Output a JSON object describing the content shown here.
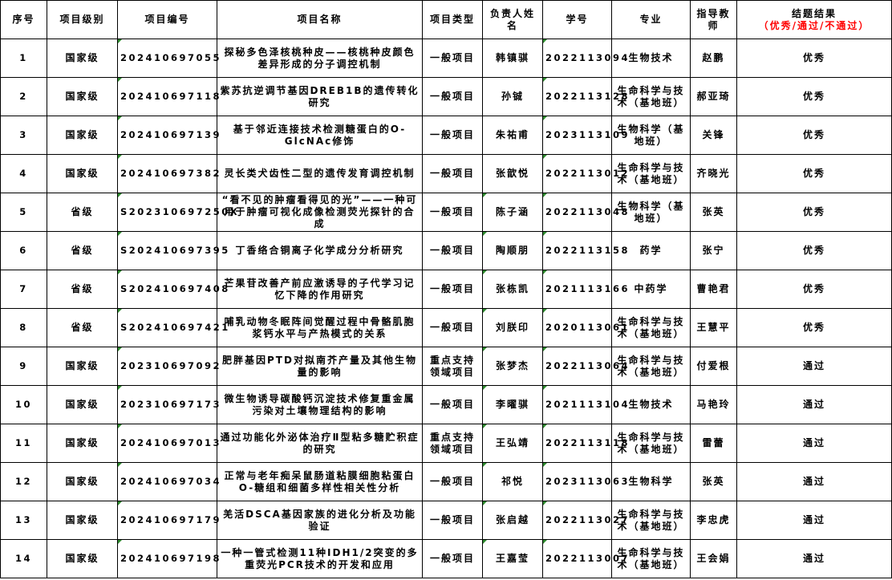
{
  "header": {
    "index": "序号",
    "level": "项目级别",
    "code": "项目编号",
    "name": "项目名称",
    "type": "项目类型",
    "leader": "负责人姓名",
    "student_id": "学号",
    "major": "专业",
    "advisor": "指导教师",
    "result": "结题结果",
    "result_options": "（优秀/通过/不通过）"
  },
  "colors": {
    "marker": "#2e8b2e",
    "result_options": "#ff0000"
  },
  "rows": [
    {
      "index": "1",
      "level": "国家级",
      "code": "202410697055",
      "name": "探秘多色泽核桃种皮——核桃种皮颜色差异形成的分子调控机制",
      "type": "一般项目",
      "leader": "韩镇骐",
      "student_id": "2022113094",
      "major": "生物技术",
      "advisor": "赵鹏",
      "result": "优秀"
    },
    {
      "index": "2",
      "level": "国家级",
      "code": "202410697118",
      "name": "紫苏抗逆调节基因DREB1B的遗传转化研究",
      "type": "一般项目",
      "leader": "孙铖",
      "student_id": "2022113128",
      "major": "生命科学与技术（基地班）",
      "advisor": "郝亚琦",
      "result": "优秀"
    },
    {
      "index": "3",
      "level": "国家级",
      "code": "202410697139",
      "name": "基于邻近连接技术检测糖蛋白的O-GlcNAc修饰",
      "type": "一般项目",
      "leader": "朱祐甫",
      "student_id": "2023113109",
      "major": "生物科学（基地班）",
      "advisor": "关锋",
      "result": "优秀"
    },
    {
      "index": "4",
      "level": "国家级",
      "code": "202410697382",
      "name": "灵长类犬齿性二型的遗传发育调控机制",
      "type": "一般项目",
      "leader": "张歆悦",
      "student_id": "2022113012",
      "major": "生命科学与技术（基地班）",
      "advisor": "齐晓光",
      "result": "优秀"
    },
    {
      "index": "5",
      "level": "省级",
      "code": "S202310697250X",
      "name": "“看不见的肿瘤看得见的光”——一种可用于肿瘤可视化成像检测荧光探针的合成",
      "type": "一般项目",
      "leader": "陈子涵",
      "student_id": "2022113048",
      "major": "生物科学（基地班）",
      "advisor": "张英",
      "result": "优秀"
    },
    {
      "index": "6",
      "level": "省级",
      "code": "S202410697395",
      "name": "丁香络合铜离子化学成分分析研究",
      "type": "一般项目",
      "leader": "陶顺朋",
      "student_id": "2022113158",
      "major": "药学",
      "advisor": "张宁",
      "result": "优秀"
    },
    {
      "index": "7",
      "level": "省级",
      "code": "S202410697408",
      "name": "芒果苷改善产前应激诱导的子代学习记忆下降的作用研究",
      "type": "一般项目",
      "leader": "张栋凯",
      "student_id": "2021113166",
      "major": "中药学",
      "advisor": "曹艳君",
      "result": "优秀"
    },
    {
      "index": "8",
      "level": "省级",
      "code": "S202410697421",
      "name": "哺乳动物冬眠阵间觉醒过程中骨骼肌胞浆钙水平与产热模式的关系",
      "type": "一般项目",
      "leader": "刘朕印",
      "student_id": "2020113061",
      "major": "生命科学与技术（基地班）",
      "advisor": "王慧平",
      "result": "优秀"
    },
    {
      "index": "9",
      "level": "国家级",
      "code": "202310697092",
      "name": "肥胖基因PTD对拟南芥产量及其他生物量的影响",
      "type": "重点支持领域项目",
      "leader": "张梦杰",
      "student_id": "2022113064",
      "major": "生命科学与技术（基地班）",
      "advisor": "付爱根",
      "result": "通过"
    },
    {
      "index": "10",
      "level": "国家级",
      "code": "202310697173",
      "name": "微生物诱导碳酸钙沉淀技术修复重金属污染对土壤物理结构的影响",
      "type": "一般项目",
      "leader": "李曜骐",
      "student_id": "2021113104",
      "major": "生物技术",
      "advisor": "马艳玲",
      "result": "通过"
    },
    {
      "index": "11",
      "level": "国家级",
      "code": "202410697013",
      "name": "通过功能化外泌体治疗Ⅱ型粘多糖贮积症的研究",
      "type": "重点支持领域项目",
      "leader": "王弘靖",
      "student_id": "2022113118",
      "major": "生命科学与技术（基地班）",
      "advisor": "雷蕾",
      "result": "通过"
    },
    {
      "index": "12",
      "level": "国家级",
      "code": "202410697034",
      "name": "正常与老年痴呆鼠肠道粘膜细胞粘蛋白O-糖组和细菌多样性相关性分析",
      "type": "一般项目",
      "leader": "祁悦",
      "student_id": "2023113063",
      "major": "生物科学",
      "advisor": "张英",
      "result": "通过"
    },
    {
      "index": "13",
      "level": "国家级",
      "code": "202410697179",
      "name": "羌活DSCA基因家族的进化分析及功能验证",
      "type": "一般项目",
      "leader": "张启越",
      "student_id": "2022113027",
      "major": "生命科学与技术（基地班）",
      "advisor": "李忠虎",
      "result": "通过"
    },
    {
      "index": "14",
      "level": "国家级",
      "code": "202410697198",
      "name": "一种一管式检测11种IDH1/2突变的多重荧光PCR技术的开发和应用",
      "type": "一般项目",
      "leader": "王嘉莹",
      "student_id": "2022113007",
      "major": "生命科学与技术（基地班）",
      "advisor": "王会娟",
      "result": "通过"
    }
  ]
}
